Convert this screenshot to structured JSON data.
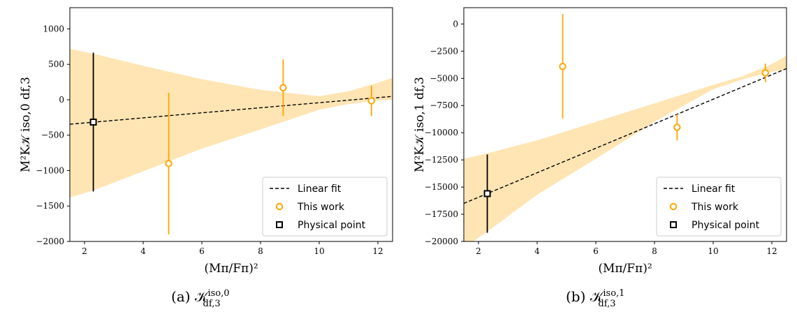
{
  "chart_data": [
    {
      "type": "scatter",
      "panel_caption": "(a) 𝒦",
      "caption_sup": "iso,0",
      "caption_sub": "df,3",
      "xlabel": "(Mπ/Fπ)²",
      "ylabel": "M²K𝒦 iso,0 df,3",
      "xlim": [
        1.5,
        12.5
      ],
      "ylim": [
        -2000,
        1300
      ],
      "xticks": [
        2,
        4,
        6,
        8,
        10,
        12
      ],
      "yticks": [
        -2000,
        -1500,
        -1000,
        -500,
        0,
        500,
        1000
      ],
      "legend_position": "lower-right",
      "series": [
        {
          "name": "Linear fit",
          "style": "dashed-line",
          "x": [
            1.5,
            12.5
          ],
          "y": [
            -345,
            48
          ]
        },
        {
          "name": "This work",
          "style": "open-circle",
          "color": "#FFA500",
          "x": [
            4.87,
            8.77,
            11.78
          ],
          "y": [
            -900,
            170,
            -15
          ],
          "yerr": [
            1000,
            400,
            215
          ]
        },
        {
          "name": "Physical point",
          "style": "open-square",
          "color": "#000000",
          "x": [
            2.3
          ],
          "y": [
            -315
          ],
          "yerr": [
            980
          ]
        }
      ],
      "band": {
        "color": "#FFE5B4",
        "x": [
          1.5,
          2.3,
          4,
          6,
          8,
          10,
          11,
          12,
          12.5
        ],
        "upper": [
          720,
          650,
          480,
          290,
          140,
          50,
          120,
          240,
          310
        ],
        "lower": [
          -1380,
          -1280,
          -1010,
          -690,
          -420,
          -140,
          -60,
          -10,
          0
        ]
      }
    },
    {
      "type": "scatter",
      "panel_caption": "(b) 𝒦",
      "caption_sup": "iso,1",
      "caption_sub": "df,3",
      "xlabel": "(Mπ/Fπ)²",
      "ylabel": "M²K𝒦 iso,1 df,3",
      "xlim": [
        1.5,
        12.5
      ],
      "ylim": [
        -20000,
        1500
      ],
      "xticks": [
        2,
        4,
        6,
        8,
        10,
        12
      ],
      "yticks": [
        -20000,
        -17500,
        -15000,
        -12500,
        -10000,
        -7500,
        -5000,
        -2500,
        0
      ],
      "legend_position": "lower-right",
      "series": [
        {
          "name": "Linear fit",
          "style": "dashed-line",
          "x": [
            1.5,
            12.5
          ],
          "y": [
            -16500,
            -4100
          ]
        },
        {
          "name": "This work",
          "style": "open-circle",
          "color": "#FFA500",
          "x": [
            4.87,
            8.77,
            11.78
          ],
          "y": [
            -3900,
            -9500,
            -4500
          ],
          "yerr": [
            4800,
            1200,
            850
          ]
        },
        {
          "name": "Physical point",
          "style": "open-square",
          "color": "#000000",
          "x": [
            2.3
          ],
          "y": [
            -15600
          ],
          "yerr": [
            3600
          ]
        }
      ],
      "band": {
        "color": "#FFE5B4",
        "x": [
          1.5,
          2.3,
          4,
          6,
          8,
          10,
          11,
          12,
          12.5
        ],
        "upper": [
          -12400,
          -11900,
          -10700,
          -9000,
          -7300,
          -5600,
          -4800,
          -3700,
          -2900
        ],
        "lower": [
          -20600,
          -19100,
          -15700,
          -12400,
          -9000,
          -6000,
          -5100,
          -4400,
          -4200
        ]
      }
    }
  ]
}
